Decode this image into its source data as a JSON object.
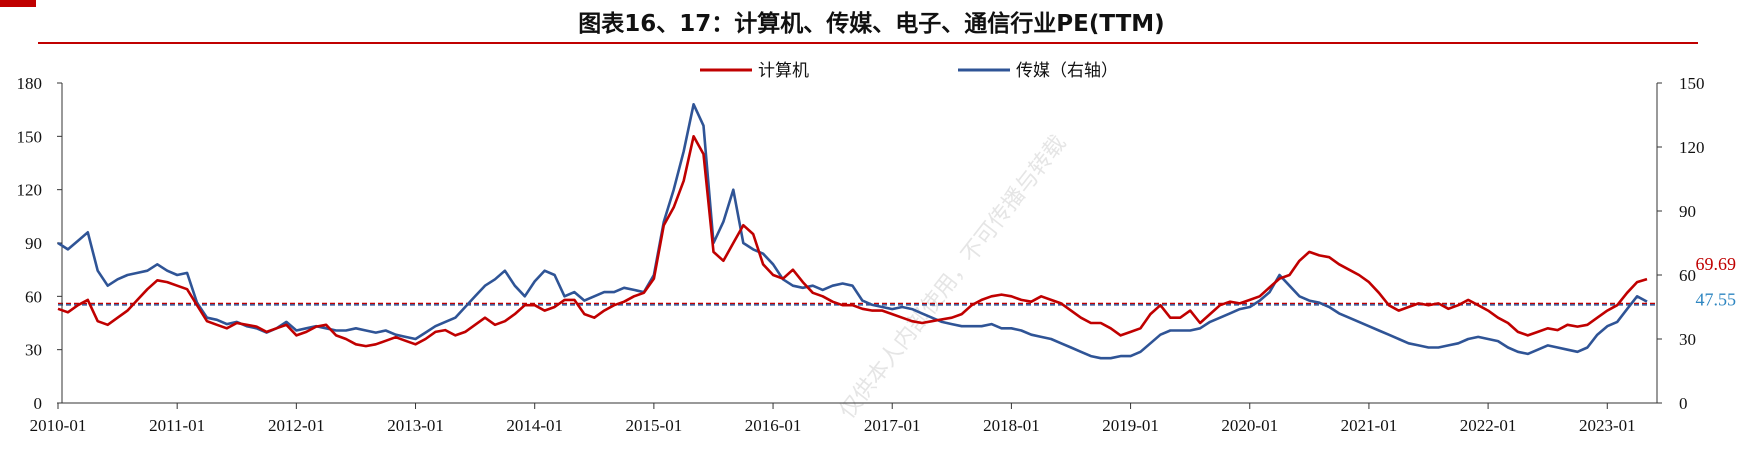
{
  "title": "图表16、17：计算机、传媒、电子、通信行业PE(TTM)",
  "colors": {
    "accent": "#c00000",
    "computer": "#c00000",
    "media": "#2f5496",
    "media_label": "#2e86c1"
  },
  "chart_data": {
    "type": "line",
    "title": "图表16、17：计算机、传媒、电子、通信行业PE(TTM)",
    "legend_placement": "top-center",
    "grid": false,
    "y_left": {
      "min": 0,
      "max": 180,
      "ticks": [
        "0",
        "30",
        "60",
        "90",
        "120",
        "150",
        "180"
      ]
    },
    "y_right": {
      "min": 0,
      "max": 150,
      "ticks": [
        "0",
        "30",
        "60",
        "90",
        "120",
        "150"
      ]
    },
    "x_ticks": [
      "2010-01",
      "2011-01",
      "2012-01",
      "2013-01",
      "2014-01",
      "2015-01",
      "2016-01",
      "2017-01",
      "2018-01",
      "2019-01",
      "2020-01",
      "2021-01",
      "2022-01",
      "2023-01"
    ],
    "x_range": [
      "2010-01",
      "2023-05"
    ],
    "series": [
      {
        "name": "计算机",
        "axis": "left",
        "color": "#c00000",
        "end_label": "69.69",
        "mean": 56,
        "x": [
          "2010-01",
          "2010-02",
          "2010-03",
          "2010-04",
          "2010-05",
          "2010-06",
          "2010-07",
          "2010-08",
          "2010-09",
          "2010-10",
          "2010-11",
          "2010-12",
          "2011-01",
          "2011-02",
          "2011-03",
          "2011-04",
          "2011-05",
          "2011-06",
          "2011-07",
          "2011-08",
          "2011-09",
          "2011-10",
          "2011-11",
          "2011-12",
          "2012-01",
          "2012-02",
          "2012-03",
          "2012-04",
          "2012-05",
          "2012-06",
          "2012-07",
          "2012-08",
          "2012-09",
          "2012-10",
          "2012-11",
          "2012-12",
          "2013-01",
          "2013-02",
          "2013-03",
          "2013-04",
          "2013-05",
          "2013-06",
          "2013-07",
          "2013-08",
          "2013-09",
          "2013-10",
          "2013-11",
          "2013-12",
          "2014-01",
          "2014-02",
          "2014-03",
          "2014-04",
          "2014-05",
          "2014-06",
          "2014-07",
          "2014-08",
          "2014-09",
          "2014-10",
          "2014-11",
          "2014-12",
          "2015-01",
          "2015-02",
          "2015-03",
          "2015-04",
          "2015-05",
          "2015-06",
          "2015-07",
          "2015-08",
          "2015-09",
          "2015-10",
          "2015-11",
          "2015-12",
          "2016-01",
          "2016-02",
          "2016-03",
          "2016-04",
          "2016-05",
          "2016-06",
          "2016-07",
          "2016-08",
          "2016-09",
          "2016-10",
          "2016-11",
          "2016-12",
          "2017-01",
          "2017-02",
          "2017-03",
          "2017-04",
          "2017-05",
          "2017-06",
          "2017-07",
          "2017-08",
          "2017-09",
          "2017-10",
          "2017-11",
          "2017-12",
          "2018-01",
          "2018-02",
          "2018-03",
          "2018-04",
          "2018-05",
          "2018-06",
          "2018-07",
          "2018-08",
          "2018-09",
          "2018-10",
          "2018-11",
          "2018-12",
          "2019-01",
          "2019-02",
          "2019-03",
          "2019-04",
          "2019-05",
          "2019-06",
          "2019-07",
          "2019-08",
          "2019-09",
          "2019-10",
          "2019-11",
          "2019-12",
          "2020-01",
          "2020-02",
          "2020-03",
          "2020-04",
          "2020-05",
          "2020-06",
          "2020-07",
          "2020-08",
          "2020-09",
          "2020-10",
          "2020-11",
          "2020-12",
          "2021-01",
          "2021-02",
          "2021-03",
          "2021-04",
          "2021-05",
          "2021-06",
          "2021-07",
          "2021-08",
          "2021-09",
          "2021-10",
          "2021-11",
          "2021-12",
          "2022-01",
          "2022-02",
          "2022-03",
          "2022-04",
          "2022-05",
          "2022-06",
          "2022-07",
          "2022-08",
          "2022-09",
          "2022-10",
          "2022-11",
          "2022-12",
          "2023-01",
          "2023-02",
          "2023-03",
          "2023-04",
          "2023-05"
        ],
        "y": [
          53,
          51,
          55,
          58,
          46,
          44,
          48,
          52,
          58,
          64,
          69,
          68,
          66,
          64,
          55,
          46,
          44,
          42,
          45,
          44,
          43,
          40,
          42,
          44,
          38,
          40,
          43,
          44,
          38,
          36,
          33,
          32,
          33,
          35,
          37,
          35,
          33,
          36,
          40,
          41,
          38,
          40,
          44,
          48,
          44,
          46,
          50,
          55,
          55,
          52,
          54,
          58,
          58,
          50,
          48,
          52,
          55,
          57,
          60,
          62,
          70,
          100,
          110,
          125,
          150,
          140,
          85,
          80,
          90,
          100,
          95,
          78,
          72,
          70,
          75,
          68,
          62,
          60,
          57,
          55,
          55,
          53,
          52,
          52,
          50,
          48,
          46,
          45,
          46,
          47,
          48,
          50,
          55,
          58,
          60,
          61,
          60,
          58,
          57,
          60,
          58,
          56,
          52,
          48,
          45,
          45,
          42,
          38,
          40,
          42,
          50,
          55,
          48,
          48,
          52,
          45,
          50,
          55,
          57,
          56,
          58,
          60,
          65,
          70,
          72,
          80,
          85,
          83,
          82,
          78,
          75,
          72,
          68,
          62,
          55,
          52,
          54,
          56,
          55,
          56,
          53,
          55,
          58,
          55,
          52,
          48,
          45,
          40,
          38,
          40,
          42,
          41,
          44,
          43,
          44,
          48,
          52,
          55,
          62,
          68,
          69.69
        ]
      },
      {
        "name": "传媒（右轴）",
        "axis": "right",
        "color": "#2f5496",
        "end_label": "47.55",
        "mean": 46,
        "x": [
          "2010-01",
          "2010-02",
          "2010-03",
          "2010-04",
          "2010-05",
          "2010-06",
          "2010-07",
          "2010-08",
          "2010-09",
          "2010-10",
          "2010-11",
          "2010-12",
          "2011-01",
          "2011-02",
          "2011-03",
          "2011-04",
          "2011-05",
          "2011-06",
          "2011-07",
          "2011-08",
          "2011-09",
          "2011-10",
          "2011-11",
          "2011-12",
          "2012-01",
          "2012-02",
          "2012-03",
          "2012-04",
          "2012-05",
          "2012-06",
          "2012-07",
          "2012-08",
          "2012-09",
          "2012-10",
          "2012-11",
          "2012-12",
          "2013-01",
          "2013-02",
          "2013-03",
          "2013-04",
          "2013-05",
          "2013-06",
          "2013-07",
          "2013-08",
          "2013-09",
          "2013-10",
          "2013-11",
          "2013-12",
          "2014-01",
          "2014-02",
          "2014-03",
          "2014-04",
          "2014-05",
          "2014-06",
          "2014-07",
          "2014-08",
          "2014-09",
          "2014-10",
          "2014-11",
          "2014-12",
          "2015-01",
          "2015-02",
          "2015-03",
          "2015-04",
          "2015-05",
          "2015-06",
          "2015-07",
          "2015-08",
          "2015-09",
          "2015-10",
          "2015-11",
          "2015-12",
          "2016-01",
          "2016-02",
          "2016-03",
          "2016-04",
          "2016-05",
          "2016-06",
          "2016-07",
          "2016-08",
          "2016-09",
          "2016-10",
          "2016-11",
          "2016-12",
          "2017-01",
          "2017-02",
          "2017-03",
          "2017-04",
          "2017-05",
          "2017-06",
          "2017-07",
          "2017-08",
          "2017-09",
          "2017-10",
          "2017-11",
          "2017-12",
          "2018-01",
          "2018-02",
          "2018-03",
          "2018-04",
          "2018-05",
          "2018-06",
          "2018-07",
          "2018-08",
          "2018-09",
          "2018-10",
          "2018-11",
          "2018-12",
          "2019-01",
          "2019-02",
          "2019-03",
          "2019-04",
          "2019-05",
          "2019-06",
          "2019-07",
          "2019-08",
          "2019-09",
          "2019-10",
          "2019-11",
          "2019-12",
          "2020-01",
          "2020-02",
          "2020-03",
          "2020-04",
          "2020-05",
          "2020-06",
          "2020-07",
          "2020-08",
          "2020-09",
          "2020-10",
          "2020-11",
          "2020-12",
          "2021-01",
          "2021-02",
          "2021-03",
          "2021-04",
          "2021-05",
          "2021-06",
          "2021-07",
          "2021-08",
          "2021-09",
          "2021-10",
          "2021-11",
          "2021-12",
          "2022-01",
          "2022-02",
          "2022-03",
          "2022-04",
          "2022-05",
          "2022-06",
          "2022-07",
          "2022-08",
          "2022-09",
          "2022-10",
          "2022-11",
          "2022-12",
          "2023-01",
          "2023-02",
          "2023-03",
          "2023-04",
          "2023-05"
        ],
        "y": [
          75,
          72,
          76,
          80,
          62,
          55,
          58,
          60,
          61,
          62,
          65,
          62,
          60,
          61,
          47,
          40,
          39,
          37,
          38,
          36,
          35,
          33,
          35,
          38,
          34,
          35,
          36,
          35,
          34,
          34,
          35,
          34,
          33,
          34,
          32,
          31,
          30,
          33,
          36,
          38,
          40,
          45,
          50,
          55,
          58,
          62,
          55,
          50,
          57,
          62,
          60,
          50,
          52,
          48,
          50,
          52,
          52,
          54,
          53,
          52,
          60,
          85,
          100,
          118,
          140,
          130,
          75,
          85,
          100,
          75,
          72,
          70,
          65,
          58,
          55,
          54,
          55,
          53,
          55,
          56,
          55,
          48,
          46,
          45,
          44,
          45,
          44,
          42,
          40,
          38,
          37,
          36,
          36,
          36,
          37,
          35,
          35,
          34,
          32,
          31,
          30,
          28,
          26,
          24,
          22,
          21,
          21,
          22,
          22,
          24,
          28,
          32,
          34,
          34,
          34,
          35,
          38,
          40,
          42,
          44,
          45,
          48,
          52,
          60,
          55,
          50,
          48,
          47,
          45,
          42,
          40,
          38,
          36,
          34,
          32,
          30,
          28,
          27,
          26,
          26,
          27,
          28,
          30,
          31,
          30,
          29,
          26,
          24,
          23,
          25,
          27,
          26,
          25,
          24,
          26,
          32,
          36,
          38,
          44,
          50,
          47.55
        ]
      }
    ]
  },
  "watermark": "仅供本人内部使用，不可传播与转载"
}
